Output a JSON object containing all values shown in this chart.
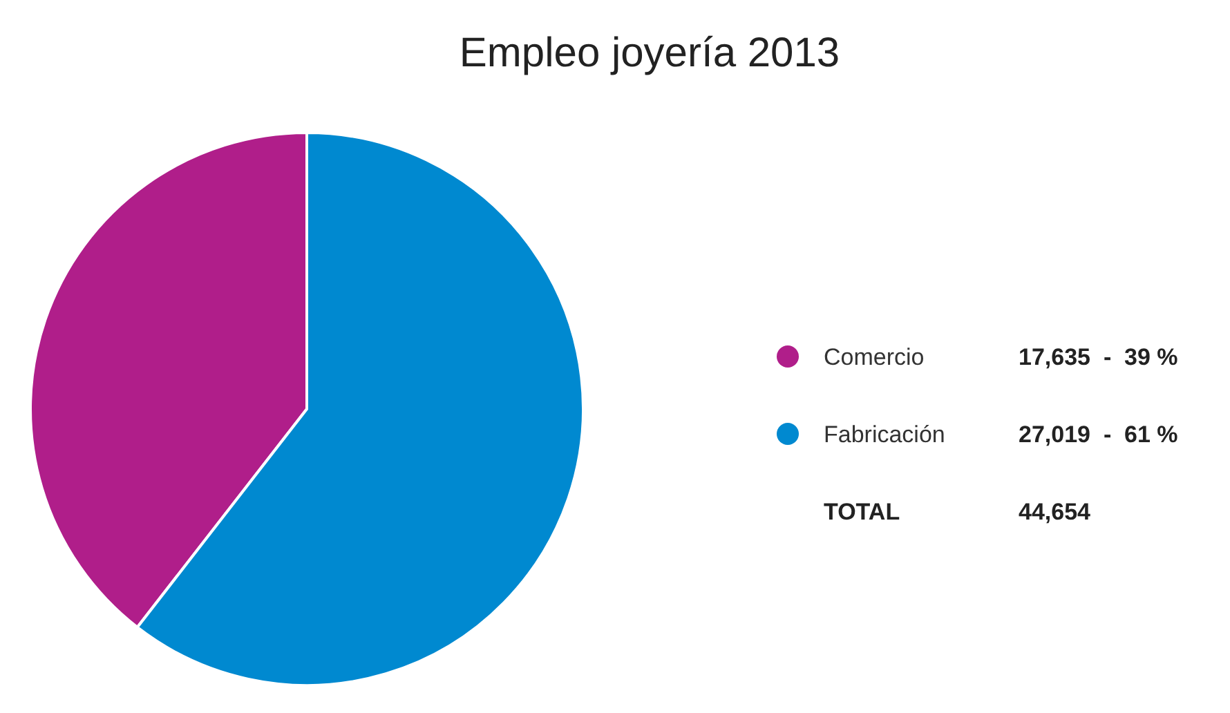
{
  "chart_data": {
    "type": "pie",
    "title": "Empleo joyería 2013",
    "categories": [
      "Comercio",
      "Fabricación"
    ],
    "values": [
      17635,
      27019
    ],
    "colors": [
      "#b01e8a",
      "#0089d0"
    ],
    "value_labels": [
      "17,635  -  39 %",
      "27,019  -  61 %"
    ],
    "annotations": [
      "TOTAL"
    ],
    "totals": [
      "44,654"
    ],
    "legend": "right"
  }
}
